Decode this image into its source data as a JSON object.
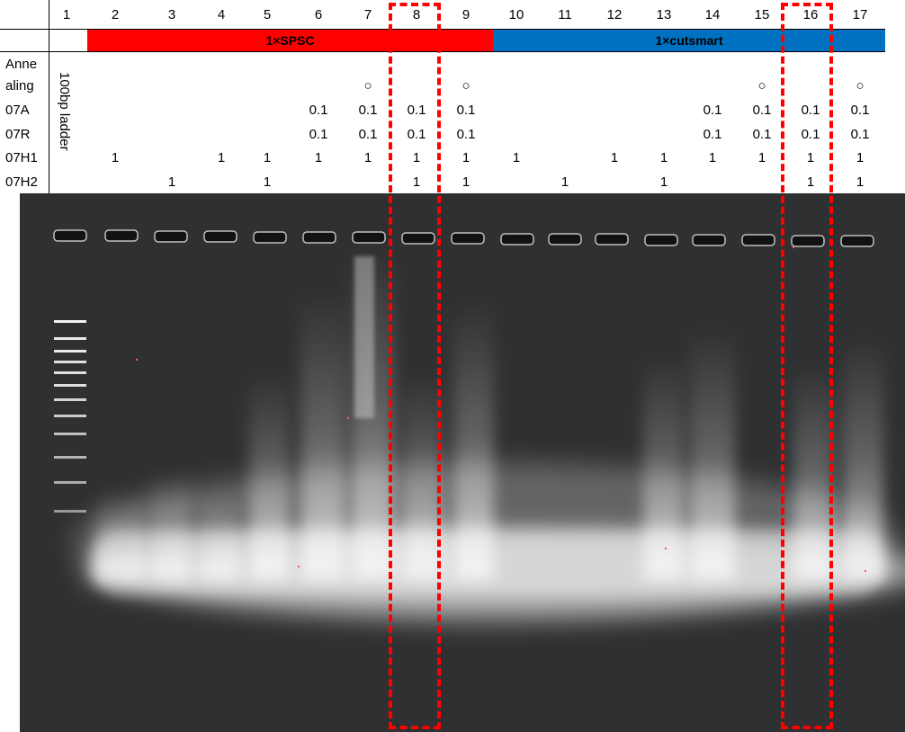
{
  "lanes": [
    "1",
    "2",
    "3",
    "4",
    "5",
    "6",
    "7",
    "8",
    "9",
    "10",
    "11",
    "12",
    "13",
    "14",
    "15",
    "16",
    "17"
  ],
  "buffers": {
    "left": "1×SPSC",
    "right": "1×cutsmart"
  },
  "ladder_label": "100bp ladder",
  "rows": [
    {
      "label": "Anne",
      "cells": [
        "",
        "",
        "",
        "",
        "",
        "",
        "",
        "",
        "",
        "",
        "",
        "",
        "",
        "",
        "",
        "",
        ""
      ]
    },
    {
      "label": "aling",
      "cells": [
        "",
        "",
        "",
        "",
        "",
        "",
        "○",
        "",
        "○",
        "",
        "",
        "",
        "",
        "",
        "○",
        "",
        "○"
      ]
    },
    {
      "label": "07A",
      "cells": [
        "",
        "",
        "",
        "",
        "",
        "0.1",
        "0.1",
        "0.1",
        "0.1",
        "",
        "",
        "",
        "",
        "0.1",
        "0.1",
        "0.1",
        "0.1"
      ]
    },
    {
      "label": "07R",
      "cells": [
        "",
        "",
        "",
        "",
        "",
        "0.1",
        "0.1",
        "0.1",
        "0.1",
        "",
        "",
        "",
        "",
        "0.1",
        "0.1",
        "0.1",
        "0.1"
      ]
    },
    {
      "label": "07H1",
      "cells": [
        "",
        "1",
        "",
        "1",
        "1",
        "1",
        "1",
        "1",
        "1",
        "1",
        "",
        "1",
        "1",
        "1",
        "1",
        "1",
        "1"
      ]
    },
    {
      "label": "07H2",
      "cells": [
        "",
        "",
        "1",
        "",
        "1",
        "",
        "",
        "1",
        "1",
        "",
        "1",
        "",
        "1",
        "",
        "",
        "1",
        "1"
      ]
    }
  ],
  "highlighted_lanes": [
    "8",
    "16"
  ],
  "colors": {
    "spsc": "#ff0000",
    "cutsmart": "#0070c0",
    "highlight": "#ff0000",
    "gel_bg": "#2e3032"
  }
}
